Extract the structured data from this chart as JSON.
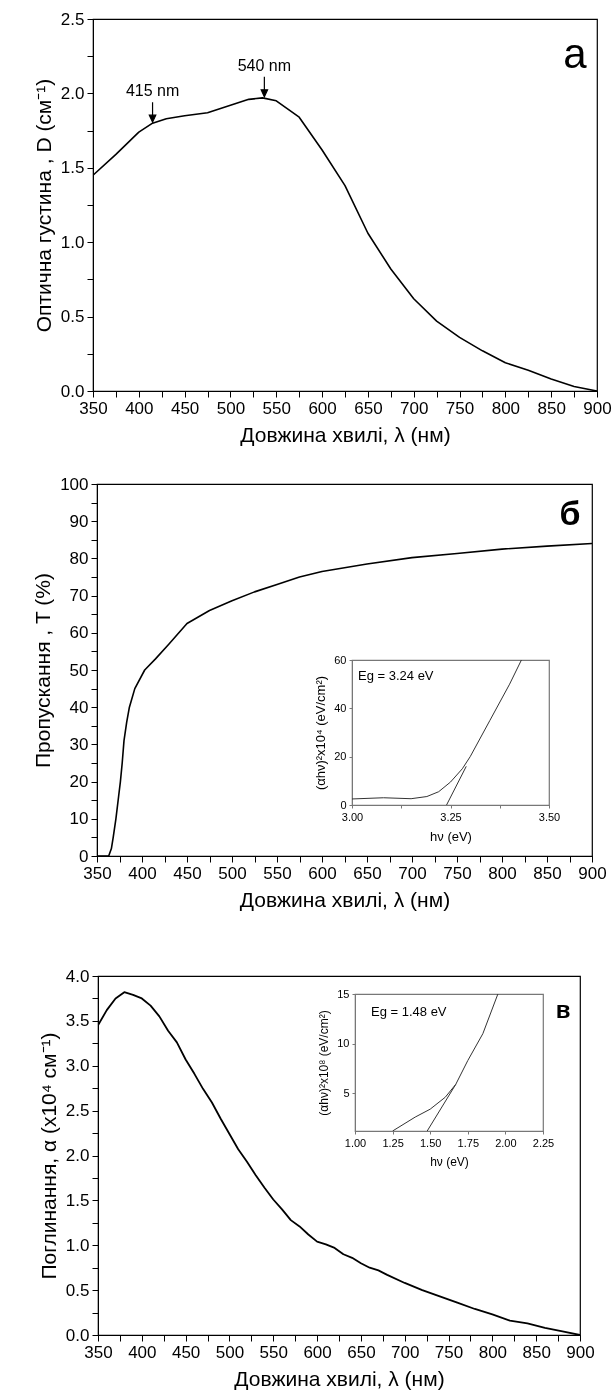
{
  "chart_data": [
    {
      "type": "line",
      "xlabel": "Довжина хвилі, λ (нм)",
      "ylabel": "Оптична густина , D (см⁻¹)",
      "annotations": [
        "а",
        {
          "text": "415 nm",
          "x": 415,
          "y": 1.8
        },
        {
          "text": "540 nm",
          "x": 537,
          "y": 1.97
        }
      ],
      "x": [
        350,
        375,
        400,
        415,
        430,
        450,
        475,
        500,
        520,
        535,
        550,
        575,
        600,
        625,
        650,
        675,
        700,
        725,
        750,
        775,
        800,
        825,
        850,
        875,
        900
      ],
      "series": [
        {
          "color": "#000000",
          "values": [
            1.45,
            1.59,
            1.74,
            1.8,
            1.83,
            1.85,
            1.87,
            1.92,
            1.96,
            1.97,
            1.95,
            1.84,
            1.62,
            1.38,
            1.06,
            0.82,
            0.62,
            0.47,
            0.36,
            0.27,
            0.19,
            0.14,
            0.08,
            0.03,
            0.0
          ]
        }
      ],
      "xlim": [
        350,
        900
      ],
      "ylim": [
        0,
        2.5
      ],
      "xticks": [
        350,
        {
          "value": 375,
          "label": null
        },
        400,
        {
          "value": 425,
          "label": null
        },
        450,
        {
          "value": 475,
          "label": null
        },
        500,
        {
          "value": 525,
          "label": null
        },
        550,
        {
          "value": 575,
          "label": null
        },
        600,
        {
          "value": 625,
          "label": null
        },
        650,
        {
          "value": 675,
          "label": null
        },
        700,
        {
          "value": 725,
          "label": null
        },
        750,
        {
          "value": 775,
          "label": null
        },
        800,
        {
          "value": 825,
          "label": null
        },
        850,
        {
          "value": 875,
          "label": null
        },
        900
      ],
      "yticks": [
        {
          "value": 0,
          "label": "0.0"
        },
        {
          "value": 0.25,
          "label": null
        },
        {
          "value": 0.5,
          "label": "0.5"
        },
        {
          "value": 0.75,
          "label": null
        },
        {
          "value": 1,
          "label": "1.0"
        },
        {
          "value": 1.25,
          "label": null
        },
        {
          "value": 1.5,
          "label": "1.5"
        },
        {
          "value": 1.75,
          "label": null
        },
        {
          "value": 2,
          "label": "2.0"
        },
        {
          "value": 2.25,
          "label": null
        },
        {
          "value": 2.5,
          "label": "2.5"
        }
      ]
    },
    {
      "type": "line",
      "xlabel": "Довжина хвилі, λ (нм)",
      "ylabel": "Пропускання , T (%)",
      "annotations": [
        "б"
      ],
      "x": [
        350,
        363,
        366,
        368,
        371,
        374,
        376,
        378,
        380,
        383,
        386,
        392,
        403,
        415,
        430,
        450,
        475,
        500,
        525,
        550,
        575,
        600,
        650,
        700,
        750,
        800,
        850,
        900
      ],
      "series": [
        {
          "color": "#000000",
          "values": [
            0,
            0,
            2,
            5,
            10,
            16,
            20,
            25,
            31,
            36,
            40,
            45,
            50,
            53,
            57,
            62.5,
            66,
            68.6,
            71,
            73,
            75,
            76.5,
            78.5,
            80.2,
            81.3,
            82.5,
            83.3,
            84
          ]
        }
      ],
      "xlim": [
        350,
        900
      ],
      "ylim": [
        0,
        100
      ],
      "xticks": [
        350,
        {
          "value": 375,
          "label": null
        },
        400,
        {
          "value": 425,
          "label": null
        },
        450,
        {
          "value": 475,
          "label": null
        },
        500,
        {
          "value": 525,
          "label": null
        },
        550,
        {
          "value": 575,
          "label": null
        },
        600,
        {
          "value": 625,
          "label": null
        },
        650,
        {
          "value": 675,
          "label": null
        },
        700,
        {
          "value": 725,
          "label": null
        },
        750,
        {
          "value": 775,
          "label": null
        },
        800,
        {
          "value": 825,
          "label": null
        },
        850,
        {
          "value": 875,
          "label": null
        },
        900
      ],
      "yticks": [
        0,
        {
          "value": 5,
          "label": null
        },
        10,
        {
          "value": 15,
          "label": null
        },
        20,
        {
          "value": 25,
          "label": null
        },
        30,
        {
          "value": 35,
          "label": null
        },
        40,
        {
          "value": 45,
          "label": null
        },
        50,
        {
          "value": 55,
          "label": null
        },
        60,
        {
          "value": 65,
          "label": null
        },
        70,
        {
          "value": 75,
          "label": null
        },
        80,
        {
          "value": 85,
          "label": null
        },
        90,
        {
          "value": 95,
          "label": null
        },
        100
      ]
    },
    {
      "type": "line",
      "xlabel": "hν (eV)",
      "ylabel": "(αhν)²x10⁴ (eV/cm²)",
      "annotations": [
        "Eg = 3.24 eV"
      ],
      "series": [
        {
          "color": "#333333",
          "x": [
            3.0,
            3.08,
            3.15,
            3.19,
            3.22,
            3.25,
            3.28,
            3.3,
            3.35,
            3.4,
            3.43
          ],
          "values": [
            2.5,
            3,
            2.6,
            3.5,
            5.5,
            9.5,
            15,
            20,
            35,
            50,
            60
          ]
        },
        {
          "type": "line",
          "color": "#333333",
          "x": [
            3.24,
            3.29
          ],
          "values": [
            0,
            16
          ]
        }
      ],
      "xlim": [
        3.0,
        3.5
      ],
      "ylim": [
        0,
        60
      ],
      "xticks": [
        {
          "value": 3.0,
          "label": "3.00"
        },
        {
          "value": 3.125,
          "label": null
        },
        {
          "value": 3.25,
          "label": "3.25"
        },
        {
          "value": 3.375,
          "label": null
        },
        {
          "value": 3.5,
          "label": "3.50"
        }
      ],
      "yticks": [
        0,
        20,
        40,
        60
      ]
    },
    {
      "type": "line",
      "xlabel": "Довжина хвилі, λ (нм)",
      "ylabel": "Поглинання, α (x10⁴ см⁻¹)",
      "annotations": [
        "в"
      ],
      "x": [
        350,
        360,
        370,
        380,
        390,
        400,
        410,
        420,
        430,
        440,
        450,
        460,
        470,
        480,
        490,
        500,
        510,
        520,
        530,
        540,
        550,
        560,
        570,
        580,
        590,
        600,
        610,
        620,
        630,
        640,
        650,
        660,
        670,
        680,
        700,
        720,
        740,
        760,
        780,
        800,
        820,
        840,
        860,
        880,
        900
      ],
      "series": [
        {
          "color": "#000000",
          "values": [
            3.45,
            3.62,
            3.75,
            3.82,
            3.79,
            3.75,
            3.67,
            3.55,
            3.39,
            3.26,
            3.07,
            2.91,
            2.74,
            2.59,
            2.41,
            2.24,
            2.07,
            1.93,
            1.78,
            1.64,
            1.51,
            1.4,
            1.28,
            1.21,
            1.12,
            1.04,
            1.01,
            0.97,
            0.9,
            0.86,
            0.8,
            0.75,
            0.72,
            0.67,
            0.58,
            0.5,
            0.43,
            0.36,
            0.29,
            0.23,
            0.16,
            0.13,
            0.08,
            0.04,
            0.0
          ]
        }
      ],
      "xlim": [
        350,
        900
      ],
      "ylim": [
        0,
        4
      ],
      "xticks": [
        350,
        {
          "value": 375,
          "label": null
        },
        400,
        {
          "value": 425,
          "label": null
        },
        450,
        {
          "value": 475,
          "label": null
        },
        500,
        {
          "value": 525,
          "label": null
        },
        550,
        {
          "value": 575,
          "label": null
        },
        600,
        {
          "value": 625,
          "label": null
        },
        650,
        {
          "value": 675,
          "label": null
        },
        700,
        {
          "value": 725,
          "label": null
        },
        750,
        {
          "value": 775,
          "label": null
        },
        800,
        {
          "value": 825,
          "label": null
        },
        850,
        {
          "value": 875,
          "label": null
        },
        900
      ],
      "yticks": [
        {
          "value": 0,
          "label": "0.0"
        },
        {
          "value": 0.25,
          "label": null
        },
        {
          "value": 0.5,
          "label": "0.5"
        },
        {
          "value": 0.75,
          "label": null
        },
        {
          "value": 1,
          "label": "1.0"
        },
        {
          "value": 1.25,
          "label": null
        },
        {
          "value": 1.5,
          "label": "1.5"
        },
        {
          "value": 1.75,
          "label": null
        },
        {
          "value": 2,
          "label": "2.0"
        },
        {
          "value": 2.25,
          "label": null
        },
        {
          "value": 2.5,
          "label": "2.5"
        },
        {
          "value": 2.75,
          "label": null
        },
        {
          "value": 3,
          "label": "3.0"
        },
        {
          "value": 3.25,
          "label": null
        },
        {
          "value": 3.5,
          "label": "3.5"
        },
        {
          "value": 3.75,
          "label": null
        },
        {
          "value": 4,
          "label": "4.0"
        }
      ]
    },
    {
      "type": "line",
      "xlabel": "hν (eV)",
      "ylabel": "(αhν)²x10⁸ (eV/cm²)",
      "annotations": [
        "Eg = 1.48 eV"
      ],
      "series": [
        {
          "color": "#333333",
          "x": [
            1.25,
            1.4,
            1.5,
            1.6,
            1.67,
            1.75,
            1.85,
            1.95
          ],
          "values": [
            1.2,
            2.6,
            3.4,
            4.6,
            5.9,
            8.3,
            11,
            15
          ]
        },
        {
          "type": "line",
          "color": "#333333",
          "x": [
            1.48,
            1.67
          ],
          "values": [
            1.2,
            5.9
          ]
        }
      ],
      "xlim": [
        1.0,
        2.25
      ],
      "ylim": [
        1.2,
        15
      ],
      "xticks": [
        {
          "value": 1.0,
          "label": "1.00"
        },
        {
          "value": 1.25,
          "label": "1.25"
        },
        {
          "value": 1.5,
          "label": "1.50"
        },
        {
          "value": 1.75,
          "label": "1.75"
        },
        {
          "value": 2.0,
          "label": "2.00"
        },
        {
          "value": 2.25,
          "label": "2.25"
        }
      ],
      "yticks": [
        5,
        10,
        15
      ]
    }
  ]
}
